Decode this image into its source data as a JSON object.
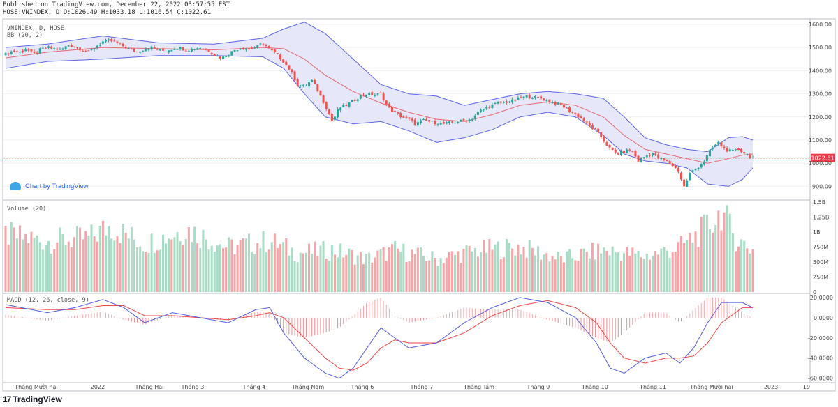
{
  "header": {
    "published": "Published on TradingView.com, December 22, 2022 03:57:55 EST",
    "ohlc": "HOSE:VNINDEX, D O:1026.49 H:1033.18 L:1016.54 C:1022.61"
  },
  "branding": {
    "chart_by": "Chart by TradingView",
    "footer": "TradingView",
    "footer_mark": "17"
  },
  "panes": {
    "price_title": "VNINDEX, D, HOSE",
    "bb_title": "BB (20, 2)",
    "volume_title": "Volume (20)",
    "macd_title": "MACD (12, 26, close, 9)"
  },
  "colors": {
    "up": "#26a69a",
    "down": "#ef5350",
    "bb_band": "#5b63e6",
    "bb_fill": "#e3e4f7",
    "bb_basis": "#e5676d",
    "macd": "#4f5be0",
    "signal": "#ef4444",
    "last_price_bg": "#f23645"
  },
  "chart_data": {
    "type": "candlestick",
    "title": "VNINDEX, D, HOSE",
    "x_ticks": [
      "Tháng Mười hai",
      "2022",
      "Tháng Hai",
      "Tháng 3",
      "Tháng 4",
      "Tháng Năm",
      "Tháng 6",
      "Tháng 7",
      "Tháng Tám",
      "Tháng 9",
      "Tháng 10",
      "Tháng 11",
      "Tháng Mười hai",
      "2023",
      "19"
    ],
    "price_axis": {
      "ticks": [
        "1600.00",
        "1500.00",
        "1400.00",
        "1300.00",
        "1200.00",
        "1100.00",
        "1000.00",
        "900.00"
      ],
      "ylim": [
        850,
        1615
      ],
      "last_price": 1022.61,
      "last_label": "1022.61"
    },
    "price_path": [
      [
        0,
        1470
      ],
      [
        10,
        1485
      ],
      [
        20,
        1480
      ],
      [
        30,
        1495
      ],
      [
        40,
        1470
      ],
      [
        50,
        1490
      ],
      [
        60,
        1500
      ],
      [
        70,
        1495
      ],
      [
        80,
        1490
      ],
      [
        90,
        1510
      ],
      [
        100,
        1505
      ],
      [
        110,
        1490
      ],
      [
        120,
        1480
      ],
      [
        130,
        1505
      ],
      [
        140,
        1525
      ],
      [
        150,
        1530
      ],
      [
        160,
        1520
      ],
      [
        170,
        1505
      ],
      [
        180,
        1490
      ],
      [
        190,
        1480
      ],
      [
        200,
        1495
      ],
      [
        210,
        1500
      ],
      [
        220,
        1490
      ],
      [
        230,
        1485
      ],
      [
        240,
        1495
      ],
      [
        250,
        1500
      ],
      [
        260,
        1490
      ],
      [
        270,
        1495
      ],
      [
        280,
        1500
      ],
      [
        290,
        1490
      ],
      [
        300,
        1470
      ],
      [
        310,
        1455
      ],
      [
        320,
        1470
      ],
      [
        330,
        1490
      ],
      [
        340,
        1500
      ],
      [
        350,
        1495
      ],
      [
        360,
        1500
      ],
      [
        370,
        1520
      ],
      [
        380,
        1490
      ],
      [
        390,
        1470
      ],
      [
        400,
        1440
      ],
      [
        410,
        1400
      ],
      [
        420,
        1340
      ],
      [
        430,
        1330
      ],
      [
        440,
        1360
      ],
      [
        450,
        1310
      ],
      [
        460,
        1250
      ],
      [
        470,
        1180
      ],
      [
        480,
        1240
      ],
      [
        490,
        1250
      ],
      [
        500,
        1270
      ],
      [
        510,
        1290
      ],
      [
        520,
        1300
      ],
      [
        530,
        1295
      ],
      [
        540,
        1300
      ],
      [
        550,
        1240
      ],
      [
        560,
        1220
      ],
      [
        570,
        1200
      ],
      [
        580,
        1190
      ],
      [
        590,
        1170
      ],
      [
        600,
        1185
      ],
      [
        610,
        1180
      ],
      [
        620,
        1175
      ],
      [
        630,
        1170
      ],
      [
        640,
        1175
      ],
      [
        650,
        1180
      ],
      [
        660,
        1185
      ],
      [
        670,
        1190
      ],
      [
        680,
        1220
      ],
      [
        690,
        1240
      ],
      [
        700,
        1250
      ],
      [
        710,
        1260
      ],
      [
        720,
        1265
      ],
      [
        730,
        1270
      ],
      [
        740,
        1280
      ],
      [
        750,
        1290
      ],
      [
        760,
        1285
      ],
      [
        770,
        1280
      ],
      [
        780,
        1270
      ],
      [
        790,
        1260
      ],
      [
        800,
        1250
      ],
      [
        810,
        1230
      ],
      [
        820,
        1210
      ],
      [
        830,
        1190
      ],
      [
        840,
        1160
      ],
      [
        850,
        1140
      ],
      [
        860,
        1100
      ],
      [
        870,
        1060
      ],
      [
        880,
        1040
      ],
      [
        890,
        1050
      ],
      [
        900,
        1060
      ],
      [
        910,
        1010
      ],
      [
        920,
        1030
      ],
      [
        930,
        1045
      ],
      [
        940,
        1020
      ],
      [
        950,
        1010
      ],
      [
        960,
        990
      ],
      [
        970,
        960
      ],
      [
        975,
        890
      ],
      [
        985,
        960
      ],
      [
        995,
        980
      ],
      [
        1005,
        1010
      ],
      [
        1015,
        1060
      ],
      [
        1025,
        1090
      ],
      [
        1035,
        1060
      ],
      [
        1045,
        1050
      ],
      [
        1055,
        1060
      ],
      [
        1065,
        1040
      ],
      [
        1075,
        1023
      ]
    ],
    "bb_upper": [
      [
        0,
        1500
      ],
      [
        60,
        1515
      ],
      [
        140,
        1550
      ],
      [
        220,
        1520
      ],
      [
        300,
        1515
      ],
      [
        370,
        1540
      ],
      [
        400,
        1580
      ],
      [
        430,
        1610
      ],
      [
        460,
        1560
      ],
      [
        500,
        1450
      ],
      [
        540,
        1340
      ],
      [
        580,
        1300
      ],
      [
        620,
        1290
      ],
      [
        660,
        1250
      ],
      [
        700,
        1275
      ],
      [
        740,
        1300
      ],
      [
        780,
        1310
      ],
      [
        820,
        1300
      ],
      [
        860,
        1280
      ],
      [
        890,
        1200
      ],
      [
        920,
        1110
      ],
      [
        950,
        1080
      ],
      [
        980,
        1060
      ],
      [
        1010,
        1050
      ],
      [
        1040,
        1110
      ],
      [
        1060,
        1115
      ],
      [
        1075,
        1100
      ]
    ],
    "bb_basis": [
      [
        0,
        1455
      ],
      [
        60,
        1480
      ],
      [
        140,
        1500
      ],
      [
        220,
        1495
      ],
      [
        300,
        1490
      ],
      [
        370,
        1500
      ],
      [
        400,
        1495
      ],
      [
        430,
        1450
      ],
      [
        460,
        1380
      ],
      [
        500,
        1310
      ],
      [
        540,
        1260
      ],
      [
        580,
        1220
      ],
      [
        620,
        1190
      ],
      [
        660,
        1180
      ],
      [
        700,
        1210
      ],
      [
        740,
        1250
      ],
      [
        780,
        1265
      ],
      [
        820,
        1250
      ],
      [
        860,
        1200
      ],
      [
        890,
        1120
      ],
      [
        920,
        1060
      ],
      [
        950,
        1040
      ],
      [
        980,
        1020
      ],
      [
        1010,
        1000
      ],
      [
        1040,
        1020
      ],
      [
        1060,
        1035
      ],
      [
        1075,
        1040
      ]
    ],
    "bb_lower": [
      [
        0,
        1410
      ],
      [
        60,
        1440
      ],
      [
        140,
        1450
      ],
      [
        220,
        1465
      ],
      [
        300,
        1465
      ],
      [
        370,
        1460
      ],
      [
        400,
        1410
      ],
      [
        430,
        1300
      ],
      [
        460,
        1200
      ],
      [
        500,
        1170
      ],
      [
        540,
        1180
      ],
      [
        580,
        1140
      ],
      [
        620,
        1090
      ],
      [
        660,
        1110
      ],
      [
        700,
        1145
      ],
      [
        740,
        1200
      ],
      [
        780,
        1220
      ],
      [
        820,
        1200
      ],
      [
        860,
        1120
      ],
      [
        890,
        1040
      ],
      [
        920,
        1010
      ],
      [
        950,
        1000
      ],
      [
        980,
        980
      ],
      [
        1010,
        910
      ],
      [
        1040,
        900
      ],
      [
        1060,
        930
      ],
      [
        1075,
        980
      ]
    ],
    "volume": {
      "ticks": [
        "1.5B",
        "1.25B",
        "1B",
        "750M",
        "500M",
        "250M",
        "0"
      ],
      "ylim": [
        0,
        1.5
      ],
      "unit": "B",
      "profile": [
        [
          0,
          0.95
        ],
        [
          60,
          0.85
        ],
        [
          120,
          0.9
        ],
        [
          150,
          1.1
        ],
        [
          200,
          0.8
        ],
        [
          260,
          1.05
        ],
        [
          320,
          0.75
        ],
        [
          380,
          0.85
        ],
        [
          420,
          0.65
        ],
        [
          470,
          0.7
        ],
        [
          520,
          0.55
        ],
        [
          560,
          0.7
        ],
        [
          620,
          0.55
        ],
        [
          680,
          0.7
        ],
        [
          740,
          0.75
        ],
        [
          800,
          0.55
        ],
        [
          860,
          0.7
        ],
        [
          920,
          0.6
        ],
        [
          970,
          0.75
        ],
        [
          1000,
          1.0
        ],
        [
          1020,
          1.2
        ],
        [
          1030,
          1.35
        ],
        [
          1050,
          0.9
        ],
        [
          1075,
          0.7
        ]
      ]
    },
    "macd": {
      "ticks": [
        "20.0000",
        "0.0000",
        "-20.0000",
        "-40.0000",
        "-60.0000"
      ],
      "ylim": [
        -63,
        22
      ],
      "macd_line": [
        [
          0,
          13
        ],
        [
          60,
          5
        ],
        [
          100,
          10
        ],
        [
          140,
          18
        ],
        [
          170,
          10
        ],
        [
          200,
          -5
        ],
        [
          240,
          5
        ],
        [
          280,
          0
        ],
        [
          320,
          -5
        ],
        [
          360,
          8
        ],
        [
          380,
          10
        ],
        [
          400,
          -15
        ],
        [
          430,
          -40
        ],
        [
          460,
          -55
        ],
        [
          480,
          -60
        ],
        [
          500,
          -50
        ],
        [
          520,
          -30
        ],
        [
          540,
          -10
        ],
        [
          560,
          -20
        ],
        [
          580,
          -30
        ],
        [
          620,
          -25
        ],
        [
          660,
          -5
        ],
        [
          700,
          10
        ],
        [
          740,
          20
        ],
        [
          780,
          15
        ],
        [
          820,
          0
        ],
        [
          850,
          -25
        ],
        [
          870,
          -50
        ],
        [
          890,
          -55
        ],
        [
          920,
          -40
        ],
        [
          950,
          -35
        ],
        [
          970,
          -45
        ],
        [
          990,
          -30
        ],
        [
          1010,
          -5
        ],
        [
          1030,
          15
        ],
        [
          1060,
          15
        ],
        [
          1075,
          10
        ]
      ],
      "signal_line": [
        [
          0,
          10
        ],
        [
          60,
          8
        ],
        [
          100,
          8
        ],
        [
          140,
          12
        ],
        [
          170,
          12
        ],
        [
          200,
          2
        ],
        [
          240,
          2
        ],
        [
          280,
          0
        ],
        [
          320,
          -2
        ],
        [
          360,
          2
        ],
        [
          380,
          5
        ],
        [
          400,
          0
        ],
        [
          430,
          -20
        ],
        [
          460,
          -40
        ],
        [
          480,
          -50
        ],
        [
          500,
          -52
        ],
        [
          520,
          -45
        ],
        [
          540,
          -30
        ],
        [
          560,
          -22
        ],
        [
          580,
          -25
        ],
        [
          620,
          -25
        ],
        [
          660,
          -15
        ],
        [
          700,
          2
        ],
        [
          740,
          12
        ],
        [
          780,
          17
        ],
        [
          820,
          10
        ],
        [
          850,
          -5
        ],
        [
          870,
          -25
        ],
        [
          890,
          -40
        ],
        [
          920,
          -45
        ],
        [
          950,
          -40
        ],
        [
          970,
          -40
        ],
        [
          990,
          -38
        ],
        [
          1010,
          -25
        ],
        [
          1030,
          -5
        ],
        [
          1060,
          10
        ],
        [
          1075,
          10
        ]
      ]
    }
  }
}
